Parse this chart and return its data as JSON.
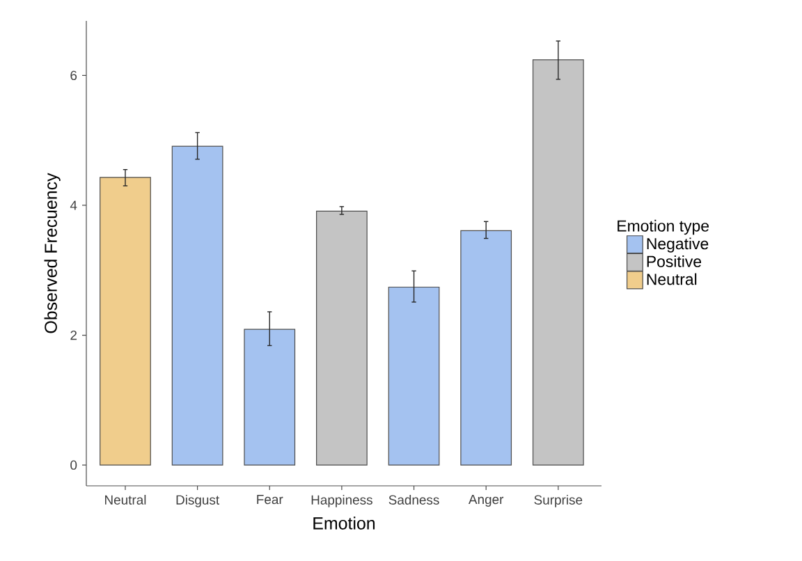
{
  "chart_data": {
    "type": "bar",
    "xlabel": "Emotion",
    "ylabel": "Observed Frecuency",
    "legend_title": "Emotion type",
    "categories": [
      "Neutral",
      "Disgust",
      "Fear",
      "Happiness",
      "Sadness",
      "Anger",
      "Surprise"
    ],
    "series": [
      {
        "name": "Negative",
        "color": "#a4c2f0",
        "values": [
          null,
          4.91,
          2.09,
          null,
          2.74,
          3.61,
          null
        ],
        "errors": [
          null,
          [
            4.71,
            5.12
          ],
          [
            1.84,
            2.36
          ],
          null,
          [
            2.51,
            2.99
          ],
          [
            3.49,
            3.75
          ],
          null
        ]
      },
      {
        "name": "Positive",
        "color": "#c4c4c4",
        "values": [
          null,
          null,
          null,
          3.91,
          null,
          null,
          6.24
        ],
        "errors": [
          null,
          null,
          null,
          [
            3.86,
            3.98
          ],
          null,
          null,
          [
            5.94,
            6.53
          ]
        ]
      },
      {
        "name": "Neutral",
        "color": "#f0cd8c",
        "values": [
          4.43,
          null,
          null,
          null,
          null,
          null,
          null
        ],
        "errors": [
          [
            4.3,
            4.55
          ],
          null,
          null,
          null,
          null,
          null,
          null
        ]
      }
    ],
    "ylim": [
      -0.32,
      6.84
    ],
    "yticks": [
      0,
      2,
      4,
      6
    ],
    "grid": false,
    "legend": "right"
  }
}
